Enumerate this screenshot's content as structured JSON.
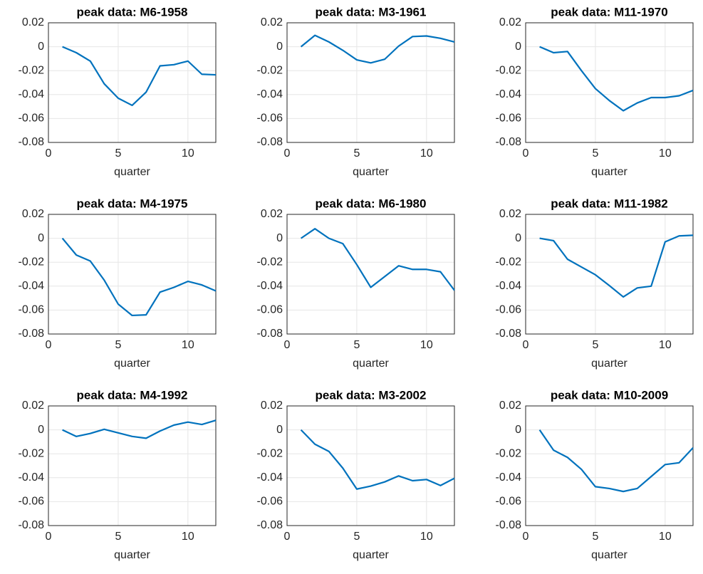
{
  "chart_data": [
    {
      "type": "line",
      "title": "peak data: M6-1958",
      "xlabel": "quarter",
      "x": [
        1,
        2,
        3,
        4,
        5,
        6,
        7,
        8,
        9,
        10,
        11,
        12
      ],
      "xlim": [
        0,
        12
      ],
      "xticks": [
        0,
        5,
        10
      ],
      "ylim": [
        -0.08,
        0.02
      ],
      "yticks": [
        -0.08,
        -0.06,
        -0.04,
        -0.02,
        0,
        0.02
      ],
      "grid": true,
      "color": "#0072bd",
      "values": [
        0,
        -0.005,
        -0.012,
        -0.031,
        -0.043,
        -0.049,
        -0.038,
        -0.016,
        -0.015,
        -0.012,
        -0.023,
        -0.0235
      ]
    },
    {
      "type": "line",
      "title": "peak data: M3-1961",
      "xlabel": "quarter",
      "x": [
        1,
        2,
        3,
        4,
        5,
        6,
        7,
        8,
        9,
        10,
        11,
        12
      ],
      "xlim": [
        0,
        12
      ],
      "xticks": [
        0,
        5,
        10
      ],
      "ylim": [
        -0.08,
        0.02
      ],
      "yticks": [
        -0.08,
        -0.06,
        -0.04,
        -0.02,
        0,
        0.02
      ],
      "grid": true,
      "color": "#0072bd",
      "values": [
        0,
        0.0095,
        0.004,
        -0.003,
        -0.011,
        -0.0135,
        -0.0105,
        0.0005,
        0.0085,
        0.009,
        0.007,
        0.004
      ]
    },
    {
      "type": "line",
      "title": "peak data: M11-1970",
      "xlabel": "quarter",
      "x": [
        1,
        2,
        3,
        4,
        5,
        6,
        7,
        8,
        9,
        10,
        11,
        12
      ],
      "xlim": [
        0,
        12
      ],
      "xticks": [
        0,
        5,
        10
      ],
      "ylim": [
        -0.08,
        0.02
      ],
      "yticks": [
        -0.08,
        -0.06,
        -0.04,
        -0.02,
        0,
        0.02
      ],
      "grid": true,
      "color": "#0072bd",
      "values": [
        0,
        -0.005,
        -0.004,
        -0.02,
        -0.035,
        -0.045,
        -0.0535,
        -0.047,
        -0.0425,
        -0.0425,
        -0.041,
        -0.0365
      ]
    },
    {
      "type": "line",
      "title": "peak data: M4-1975",
      "xlabel": "quarter",
      "x": [
        1,
        2,
        3,
        4,
        5,
        6,
        7,
        8,
        9,
        10,
        11,
        12
      ],
      "xlim": [
        0,
        12
      ],
      "xticks": [
        0,
        5,
        10
      ],
      "ylim": [
        -0.08,
        0.02
      ],
      "yticks": [
        -0.08,
        -0.06,
        -0.04,
        -0.02,
        0,
        0.02
      ],
      "grid": true,
      "color": "#0072bd",
      "values": [
        0,
        -0.014,
        -0.019,
        -0.035,
        -0.055,
        -0.0645,
        -0.064,
        -0.045,
        -0.041,
        -0.036,
        -0.039,
        -0.044
      ]
    },
    {
      "type": "line",
      "title": "peak data: M6-1980",
      "xlabel": "quarter",
      "x": [
        1,
        2,
        3,
        4,
        5,
        6,
        7,
        8,
        9,
        10,
        11,
        12
      ],
      "xlim": [
        0,
        12
      ],
      "xticks": [
        0,
        5,
        10
      ],
      "ylim": [
        -0.08,
        0.02
      ],
      "yticks": [
        -0.08,
        -0.06,
        -0.04,
        -0.02,
        0,
        0.02
      ],
      "grid": true,
      "color": "#0072bd",
      "values": [
        0,
        0.008,
        0,
        -0.0045,
        -0.022,
        -0.041,
        -0.032,
        -0.023,
        -0.026,
        -0.026,
        -0.028,
        -0.0435
      ]
    },
    {
      "type": "line",
      "title": "peak data: M11-1982",
      "xlabel": "quarter",
      "x": [
        1,
        2,
        3,
        4,
        5,
        6,
        7,
        8,
        9,
        10,
        11,
        12
      ],
      "xlim": [
        0,
        12
      ],
      "xticks": [
        0,
        5,
        10
      ],
      "ylim": [
        -0.08,
        0.02
      ],
      "yticks": [
        -0.08,
        -0.06,
        -0.04,
        -0.02,
        0,
        0.02
      ],
      "grid": true,
      "color": "#0072bd",
      "values": [
        0,
        -0.002,
        -0.0175,
        -0.024,
        -0.0305,
        -0.0395,
        -0.049,
        -0.0415,
        -0.04,
        -0.003,
        0.002,
        0.0025
      ]
    },
    {
      "type": "line",
      "title": "peak data: M4-1992",
      "xlabel": "quarter",
      "x": [
        1,
        2,
        3,
        4,
        5,
        6,
        7,
        8,
        9,
        10,
        11,
        12
      ],
      "xlim": [
        0,
        12
      ],
      "xticks": [
        0,
        5,
        10
      ],
      "ylim": [
        -0.08,
        0.02
      ],
      "yticks": [
        -0.08,
        -0.06,
        -0.04,
        -0.02,
        0,
        0.02
      ],
      "grid": true,
      "color": "#0072bd",
      "values": [
        0,
        -0.0055,
        -0.003,
        0.0005,
        -0.0025,
        -0.0055,
        -0.007,
        -0.001,
        0.004,
        0.0065,
        0.0045,
        0.008
      ]
    },
    {
      "type": "line",
      "title": "peak data: M3-2002",
      "xlabel": "quarter",
      "x": [
        1,
        2,
        3,
        4,
        5,
        6,
        7,
        8,
        9,
        10,
        11,
        12
      ],
      "xlim": [
        0,
        12
      ],
      "xticks": [
        0,
        5,
        10
      ],
      "ylim": [
        -0.08,
        0.02
      ],
      "yticks": [
        -0.08,
        -0.06,
        -0.04,
        -0.02,
        0,
        0.02
      ],
      "grid": true,
      "color": "#0072bd",
      "values": [
        0,
        -0.012,
        -0.018,
        -0.032,
        -0.0495,
        -0.047,
        -0.0435,
        -0.0385,
        -0.0425,
        -0.0415,
        -0.0465,
        -0.0405
      ]
    },
    {
      "type": "line",
      "title": "peak data: M10-2009",
      "xlabel": "quarter",
      "x": [
        1,
        2,
        3,
        4,
        5,
        6,
        7,
        8,
        9,
        10,
        11,
        12
      ],
      "xlim": [
        0,
        12
      ],
      "xticks": [
        0,
        5,
        10
      ],
      "ylim": [
        -0.08,
        0.02
      ],
      "yticks": [
        -0.08,
        -0.06,
        -0.04,
        -0.02,
        0,
        0.02
      ],
      "grid": true,
      "color": "#0072bd",
      "values": [
        0,
        -0.017,
        -0.023,
        -0.033,
        -0.0475,
        -0.049,
        -0.0515,
        -0.049,
        -0.039,
        -0.029,
        -0.0275,
        -0.015
      ]
    }
  ]
}
